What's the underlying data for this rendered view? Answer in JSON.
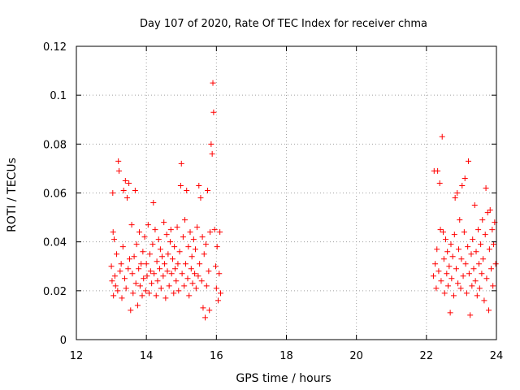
{
  "chart_data": {
    "type": "scatter",
    "title": "Day 107 of 2020, Rate Of TEC Index for receiver chma",
    "xlabel": "GPS time / hours",
    "ylabel": "ROTI / TECUs",
    "xlim": [
      12,
      24
    ],
    "ylim": [
      0,
      0.12
    ],
    "xticks": [
      12,
      14,
      16,
      18,
      20,
      22,
      24
    ],
    "xtick_labels": [
      "12",
      "14",
      "16",
      "18",
      "20",
      "22",
      "24"
    ],
    "yticks": [
      0,
      0.02,
      0.04,
      0.06,
      0.08,
      0.1,
      0.12
    ],
    "ytick_labels": [
      "0",
      "0.02",
      "0.04",
      "0.06",
      "0.08",
      "0.1",
      "0.12"
    ],
    "grid": true,
    "marker": "+",
    "color": "#ff0000",
    "series": [
      {
        "name": "ROTI",
        "points": [
          [
            13.0,
            0.03
          ],
          [
            13.02,
            0.024
          ],
          [
            13.04,
            0.06
          ],
          [
            13.05,
            0.044
          ],
          [
            13.06,
            0.018
          ],
          [
            13.08,
            0.041
          ],
          [
            13.1,
            0.026
          ],
          [
            13.12,
            0.022
          ],
          [
            13.15,
            0.035
          ],
          [
            13.18,
            0.02
          ],
          [
            13.2,
            0.073
          ],
          [
            13.22,
            0.069
          ],
          [
            13.25,
            0.028
          ],
          [
            13.28,
            0.031
          ],
          [
            13.3,
            0.017
          ],
          [
            13.33,
            0.038
          ],
          [
            13.35,
            0.061
          ],
          [
            13.38,
            0.025
          ],
          [
            13.4,
            0.065
          ],
          [
            13.42,
            0.021
          ],
          [
            13.45,
            0.058
          ],
          [
            13.48,
            0.029
          ],
          [
            13.5,
            0.064
          ],
          [
            13.52,
            0.033
          ],
          [
            13.55,
            0.012
          ],
          [
            13.58,
            0.047
          ],
          [
            13.6,
            0.027
          ],
          [
            13.62,
            0.019
          ],
          [
            13.65,
            0.034
          ],
          [
            13.68,
            0.061
          ],
          [
            13.7,
            0.023
          ],
          [
            13.72,
            0.039
          ],
          [
            13.75,
            0.014
          ],
          [
            13.78,
            0.029
          ],
          [
            13.8,
            0.044
          ],
          [
            13.82,
            0.022
          ],
          [
            13.85,
            0.031
          ],
          [
            13.88,
            0.018
          ],
          [
            13.9,
            0.036
          ],
          [
            13.92,
            0.025
          ],
          [
            13.95,
            0.042
          ],
          [
            13.98,
            0.02
          ],
          [
            14.0,
            0.031
          ],
          [
            14.02,
            0.026
          ],
          [
            14.05,
            0.047
          ],
          [
            14.08,
            0.019
          ],
          [
            14.1,
            0.035
          ],
          [
            14.12,
            0.028
          ],
          [
            14.15,
            0.023
          ],
          [
            14.18,
            0.039
          ],
          [
            14.2,
            0.056
          ],
          [
            14.22,
            0.027
          ],
          [
            14.25,
            0.045
          ],
          [
            14.28,
            0.018
          ],
          [
            14.3,
            0.032
          ],
          [
            14.32,
            0.024
          ],
          [
            14.35,
            0.041
          ],
          [
            14.38,
            0.029
          ],
          [
            14.4,
            0.037
          ],
          [
            14.42,
            0.021
          ],
          [
            14.45,
            0.034
          ],
          [
            14.48,
            0.026
          ],
          [
            14.5,
            0.048
          ],
          [
            14.52,
            0.031
          ],
          [
            14.55,
            0.017
          ],
          [
            14.58,
            0.043
          ],
          [
            14.6,
            0.028
          ],
          [
            14.62,
            0.035
          ],
          [
            14.65,
            0.022
          ],
          [
            14.68,
            0.04
          ],
          [
            14.7,
            0.045
          ],
          [
            14.72,
            0.027
          ],
          [
            14.75,
            0.033
          ],
          [
            14.78,
            0.019
          ],
          [
            14.8,
            0.038
          ],
          [
            14.82,
            0.029
          ],
          [
            14.85,
            0.024
          ],
          [
            14.88,
            0.046
          ],
          [
            14.9,
            0.031
          ],
          [
            14.92,
            0.02
          ],
          [
            14.95,
            0.036
          ],
          [
            14.98,
            0.063
          ],
          [
            15.0,
            0.072
          ],
          [
            15.02,
            0.027
          ],
          [
            15.05,
            0.042
          ],
          [
            15.08,
            0.022
          ],
          [
            15.1,
            0.049
          ],
          [
            15.12,
            0.031
          ],
          [
            15.15,
            0.061
          ],
          [
            15.18,
            0.025
          ],
          [
            15.2,
            0.038
          ],
          [
            15.22,
            0.018
          ],
          [
            15.25,
            0.044
          ],
          [
            15.28,
            0.029
          ],
          [
            15.3,
            0.034
          ],
          [
            15.32,
            0.023
          ],
          [
            15.35,
            0.041
          ],
          [
            15.38,
            0.027
          ],
          [
            15.4,
            0.037
          ],
          [
            15.42,
            0.021
          ],
          [
            15.45,
            0.046
          ],
          [
            15.48,
            0.026
          ],
          [
            15.5,
            0.063
          ],
          [
            15.52,
            0.031
          ],
          [
            15.55,
            0.058
          ],
          [
            15.58,
            0.024
          ],
          [
            15.6,
            0.042
          ],
          [
            15.62,
            0.013
          ],
          [
            15.65,
            0.035
          ],
          [
            15.68,
            0.009
          ],
          [
            15.7,
            0.039
          ],
          [
            15.72,
            0.022
          ],
          [
            15.75,
            0.061
          ],
          [
            15.78,
            0.028
          ],
          [
            15.8,
            0.012
          ],
          [
            15.82,
            0.044
          ],
          [
            15.85,
            0.08
          ],
          [
            15.88,
            0.076
          ],
          [
            15.9,
            0.105
          ],
          [
            15.92,
            0.093
          ],
          [
            15.95,
            0.045
          ],
          [
            15.98,
            0.03
          ],
          [
            16.0,
            0.021
          ],
          [
            16.02,
            0.038
          ],
          [
            16.05,
            0.016
          ],
          [
            16.08,
            0.027
          ],
          [
            16.1,
            0.044
          ],
          [
            16.12,
            0.019
          ],
          [
            22.2,
            0.026
          ],
          [
            22.22,
            0.069
          ],
          [
            22.25,
            0.031
          ],
          [
            22.28,
            0.021
          ],
          [
            22.3,
            0.037
          ],
          [
            22.32,
            0.069
          ],
          [
            22.35,
            0.028
          ],
          [
            22.38,
            0.064
          ],
          [
            22.4,
            0.045
          ],
          [
            22.42,
            0.024
          ],
          [
            22.45,
            0.083
          ],
          [
            22.48,
            0.044
          ],
          [
            22.5,
            0.033
          ],
          [
            22.52,
            0.019
          ],
          [
            22.55,
            0.041
          ],
          [
            22.58,
            0.027
          ],
          [
            22.6,
            0.036
          ],
          [
            22.62,
            0.022
          ],
          [
            22.65,
            0.03
          ],
          [
            22.68,
            0.011
          ],
          [
            22.7,
            0.039
          ],
          [
            22.72,
            0.025
          ],
          [
            22.75,
            0.034
          ],
          [
            22.78,
            0.018
          ],
          [
            22.8,
            0.043
          ],
          [
            22.82,
            0.058
          ],
          [
            22.85,
            0.029
          ],
          [
            22.88,
            0.06
          ],
          [
            22.9,
            0.023
          ],
          [
            22.92,
            0.037
          ],
          [
            22.95,
            0.049
          ],
          [
            22.98,
            0.021
          ],
          [
            23.0,
            0.033
          ],
          [
            23.02,
            0.063
          ],
          [
            23.05,
            0.026
          ],
          [
            23.08,
            0.044
          ],
          [
            23.1,
            0.066
          ],
          [
            23.12,
            0.031
          ],
          [
            23.15,
            0.019
          ],
          [
            23.18,
            0.038
          ],
          [
            23.2,
            0.073
          ],
          [
            23.22,
            0.027
          ],
          [
            23.25,
            0.01
          ],
          [
            23.28,
            0.035
          ],
          [
            23.3,
            0.022
          ],
          [
            23.32,
            0.041
          ],
          [
            23.35,
            0.029
          ],
          [
            23.38,
            0.055
          ],
          [
            23.4,
            0.024
          ],
          [
            23.42,
            0.036
          ],
          [
            23.45,
            0.018
          ],
          [
            23.48,
            0.045
          ],
          [
            23.5,
            0.031
          ],
          [
            23.52,
            0.021
          ],
          [
            23.55,
            0.039
          ],
          [
            23.58,
            0.027
          ],
          [
            23.6,
            0.049
          ],
          [
            23.62,
            0.033
          ],
          [
            23.65,
            0.016
          ],
          [
            23.68,
            0.043
          ],
          [
            23.7,
            0.062
          ],
          [
            23.72,
            0.025
          ],
          [
            23.75,
            0.052
          ],
          [
            23.78,
            0.012
          ],
          [
            23.8,
            0.037
          ],
          [
            23.82,
            0.053
          ],
          [
            23.85,
            0.029
          ],
          [
            23.88,
            0.045
          ],
          [
            23.9,
            0.022
          ],
          [
            23.92,
            0.039
          ],
          [
            23.95,
            0.048
          ],
          [
            23.98,
            0.031
          ]
        ]
      }
    ]
  }
}
